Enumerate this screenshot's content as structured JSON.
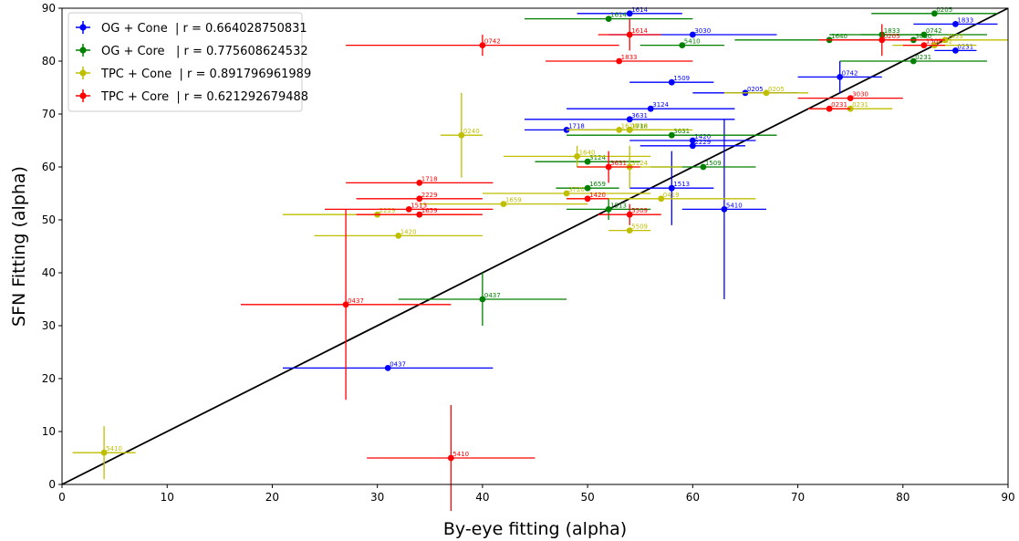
{
  "chart_data": {
    "type": "scatter",
    "title": "",
    "xlabel": "By-eye fitting (alpha)",
    "ylabel": "SFN Fitting (alpha)",
    "xlim": [
      0,
      90
    ],
    "ylim": [
      0,
      90
    ],
    "xticks": [
      0,
      10,
      20,
      30,
      40,
      50,
      60,
      70,
      80,
      90
    ],
    "yticks": [
      0,
      10,
      20,
      30,
      40,
      50,
      60,
      70,
      80,
      90
    ],
    "grid": false,
    "legend_position": "top-left",
    "reference_line": {
      "x": [
        0,
        90
      ],
      "y": [
        0,
        90
      ],
      "color": "#000000"
    },
    "series": [
      {
        "name": "OG + Cone  | r = 0.664028750831",
        "color": "#0000ff",
        "points": [
          {
            "x": 54,
            "y": 89,
            "xerr": 5,
            "yerr": 0,
            "label": "1614"
          },
          {
            "x": 60,
            "y": 85,
            "xerr": 8,
            "yerr": 0,
            "label": "3030"
          },
          {
            "x": 85,
            "y": 87,
            "xerr": 4,
            "yerr": 0,
            "label": "1833"
          },
          {
            "x": 85,
            "y": 82,
            "xerr": 2,
            "yerr": 0,
            "label": "0231"
          },
          {
            "x": 74,
            "y": 77,
            "xerr": 4,
            "yerr": 3,
            "label": "0742"
          },
          {
            "x": 58,
            "y": 76,
            "xerr": 4,
            "yerr": 0,
            "label": "1509"
          },
          {
            "x": 65,
            "y": 74,
            "xerr": 5,
            "yerr": 0,
            "label": "0205"
          },
          {
            "x": 56,
            "y": 71,
            "xerr": 8,
            "yerr": 0,
            "label": "3124"
          },
          {
            "x": 54,
            "y": 69,
            "xerr": 10,
            "yerr": 0,
            "label": "3631"
          },
          {
            "x": 48,
            "y": 67,
            "xerr": 4,
            "yerr": 0,
            "label": "1718"
          },
          {
            "x": 60,
            "y": 65,
            "xerr": 6,
            "yerr": 0,
            "label": "1420"
          },
          {
            "x": 60,
            "y": 64,
            "xerr": 5,
            "yerr": 0,
            "label": "2229"
          },
          {
            "x": 58,
            "y": 56,
            "xerr": 4,
            "yerr": 7,
            "label": "1513"
          },
          {
            "x": 63,
            "y": 52,
            "xerr": 4,
            "yerr": 17,
            "label": "5410"
          },
          {
            "x": 31,
            "y": 22,
            "xerr": 10,
            "yerr": 0,
            "label": "0437"
          }
        ]
      },
      {
        "name": "OG + Core   | r = 0.775608624532",
        "color": "#008000",
        "points": [
          {
            "x": 52,
            "y": 88,
            "xerr": 8,
            "yerr": 0,
            "label": "1614"
          },
          {
            "x": 83,
            "y": 89,
            "xerr": 6,
            "yerr": 0,
            "label": "0205"
          },
          {
            "x": 78,
            "y": 85,
            "xerr": 5,
            "yerr": 0,
            "label": "1833"
          },
          {
            "x": 82,
            "y": 85,
            "xerr": 6,
            "yerr": 0,
            "label": "0742"
          },
          {
            "x": 73,
            "y": 84,
            "xerr": 9,
            "yerr": 0,
            "label": "1640"
          },
          {
            "x": 81,
            "y": 84,
            "xerr": 3,
            "yerr": 0,
            "label": "3030"
          },
          {
            "x": 59,
            "y": 83,
            "xerr": 4,
            "yerr": 0,
            "label": "5410"
          },
          {
            "x": 81,
            "y": 80,
            "xerr": 7,
            "yerr": 0,
            "label": "0231"
          },
          {
            "x": 54,
            "y": 67,
            "xerr": 3,
            "yerr": 0,
            "label": "1718"
          },
          {
            "x": 58,
            "y": 66,
            "xerr": 10,
            "yerr": 0,
            "label": "3631"
          },
          {
            "x": 50,
            "y": 61,
            "xerr": 5,
            "yerr": 0,
            "label": "3124"
          },
          {
            "x": 61,
            "y": 60,
            "xerr": 5,
            "yerr": 0,
            "label": "1509"
          },
          {
            "x": 50,
            "y": 56,
            "xerr": 3,
            "yerr": 0,
            "label": "1659"
          },
          {
            "x": 52,
            "y": 52,
            "xerr": 4,
            "yerr": 2,
            "label": "1513"
          },
          {
            "x": 40,
            "y": 35,
            "xerr": 8,
            "yerr": 5,
            "label": "0437"
          }
        ]
      },
      {
        "name": "TPC + Cone  | r = 0.891796961989",
        "color": "#bfbf00",
        "points": [
          {
            "x": 84,
            "y": 84,
            "xerr": 6,
            "yerr": 0,
            "label": "1833"
          },
          {
            "x": 83,
            "y": 83,
            "xerr": 4,
            "yerr": 0,
            "label": "0742"
          },
          {
            "x": 67,
            "y": 74,
            "xerr": 4,
            "yerr": 0,
            "label": "0205"
          },
          {
            "x": 75,
            "y": 71,
            "xerr": 4,
            "yerr": 0,
            "label": "0231"
          },
          {
            "x": 53,
            "y": 67,
            "xerr": 5,
            "yerr": 0,
            "label": "1614"
          },
          {
            "x": 54,
            "y": 67,
            "xerr": 6,
            "yerr": 0,
            "label": "1509"
          },
          {
            "x": 38,
            "y": 66,
            "xerr": 2,
            "yerr": 8,
            "label": "0240"
          },
          {
            "x": 49,
            "y": 62,
            "xerr": 7,
            "yerr": 2,
            "label": "1640"
          },
          {
            "x": 54,
            "y": 60,
            "xerr": 5,
            "yerr": 4,
            "label": "3124"
          },
          {
            "x": 48,
            "y": 55,
            "xerr": 8,
            "yerr": 0,
            "label": "3720"
          },
          {
            "x": 57,
            "y": 54,
            "xerr": 9,
            "yerr": 0,
            "label": "0419"
          },
          {
            "x": 42,
            "y": 53,
            "xerr": 8,
            "yerr": 0,
            "label": "1659"
          },
          {
            "x": 30,
            "y": 51,
            "xerr": 9,
            "yerr": 0,
            "label": "2229"
          },
          {
            "x": 54,
            "y": 48,
            "xerr": 2,
            "yerr": 0,
            "label": "5509"
          },
          {
            "x": 32,
            "y": 47,
            "xerr": 8,
            "yerr": 0,
            "label": "1420"
          },
          {
            "x": 4,
            "y": 6,
            "xerr": 3,
            "yerr": 5,
            "label": "5410"
          }
        ]
      },
      {
        "name": "TPC + Core  | r = 0.621292679488",
        "color": "#ff0000",
        "points": [
          {
            "x": 40,
            "y": 83,
            "xerr": 13,
            "yerr": 2,
            "label": "0742"
          },
          {
            "x": 54,
            "y": 85,
            "xerr": 3,
            "yerr": 3,
            "label": "1614"
          },
          {
            "x": 53,
            "y": 80,
            "xerr": 7,
            "yerr": 0,
            "label": "1833"
          },
          {
            "x": 78,
            "y": 84,
            "xerr": 6,
            "yerr": 3,
            "label": "0205"
          },
          {
            "x": 82,
            "y": 83,
            "xerr": 2,
            "yerr": 0,
            "label": "1509"
          },
          {
            "x": 75,
            "y": 73,
            "xerr": 5,
            "yerr": 0,
            "label": "3030"
          },
          {
            "x": 73,
            "y": 71,
            "xerr": 2,
            "yerr": 0,
            "label": "0231"
          },
          {
            "x": 52,
            "y": 60,
            "xerr": 3,
            "yerr": 3,
            "label": "3631"
          },
          {
            "x": 34,
            "y": 57,
            "xerr": 7,
            "yerr": 0,
            "label": "1718"
          },
          {
            "x": 34,
            "y": 54,
            "xerr": 6,
            "yerr": 0,
            "label": "2229"
          },
          {
            "x": 50,
            "y": 54,
            "xerr": 2,
            "yerr": 0,
            "label": "1420"
          },
          {
            "x": 33,
            "y": 52,
            "xerr": 8,
            "yerr": 0,
            "label": "1513"
          },
          {
            "x": 34,
            "y": 51,
            "xerr": 6,
            "yerr": 0,
            "label": "1659"
          },
          {
            "x": 54,
            "y": 51,
            "xerr": 3,
            "yerr": 2,
            "label": "5509"
          },
          {
            "x": 27,
            "y": 34,
            "xerr": 10,
            "yerr": 18,
            "label": "0437"
          },
          {
            "x": 37,
            "y": 5,
            "xerr": 8,
            "yerr": 10,
            "label": "5410"
          }
        ]
      }
    ]
  }
}
